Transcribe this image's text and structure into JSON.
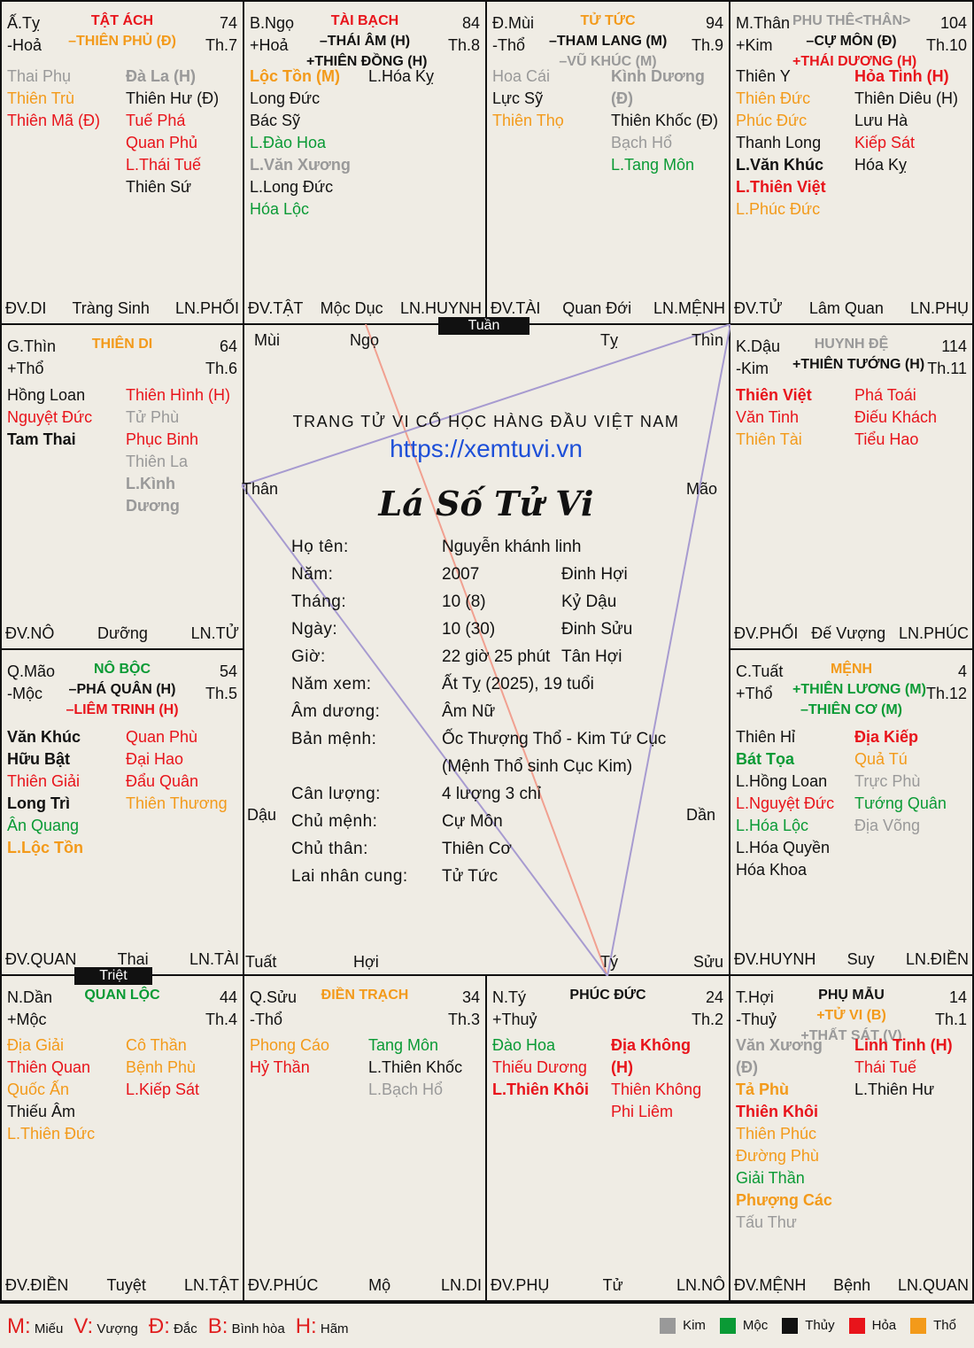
{
  "colors": {
    "kim": "#999999",
    "moc": "#0a9a35",
    "thuy": "#111111",
    "hoa": "#e8141b",
    "tho": "#f39a1a",
    "blue": "#1d4fd8",
    "red_line": "#f1a090",
    "purple_line": "#a79bd0"
  },
  "palaces": [
    {
      "branch_line1": "Ấ.Tỵ",
      "branch_line2": "-Hoả",
      "title": [
        {
          "text": "TẬT ÁCH",
          "c": "hoa"
        },
        {
          "text": "–THIÊN PHỦ (Đ)",
          "c": "tho"
        }
      ],
      "age": "74",
      "month": "Th.7",
      "left": [
        {
          "text": "Thai Phụ",
          "c": "kim"
        },
        {
          "text": "Thiên Trù",
          "c": "tho"
        },
        {
          "text": "Thiên Mã (Đ)",
          "c": "hoa"
        }
      ],
      "right": [
        {
          "text": "Đà La (H)",
          "c": "kim",
          "b": true
        },
        {
          "text": "Thiên Hư (Đ)",
          "c": "thuy"
        },
        {
          "text": "Tuế Phá",
          "c": "hoa"
        },
        {
          "text": "Quan Phủ",
          "c": "hoa"
        },
        {
          "text": "L.Thái Tuế",
          "c": "hoa"
        },
        {
          "text": "Thiên Sứ",
          "c": "thuy"
        }
      ],
      "footer": [
        "ĐV.DI",
        "Tràng Sinh",
        "LN.PHỐI"
      ]
    },
    {
      "branch_line1": "B.Ngọ",
      "branch_line2": "+Hoả",
      "title": [
        {
          "text": "TÀI BẠCH",
          "c": "hoa"
        },
        {
          "text": "–THÁI ÂM (H)",
          "c": "thuy"
        },
        {
          "text": "+THIÊN ĐỒNG (H)",
          "c": "thuy"
        }
      ],
      "age": "84",
      "month": "Th.8",
      "left": [
        {
          "text": "Lộc Tồn (M)",
          "c": "tho",
          "b": true
        },
        {
          "text": "Long Đức",
          "c": "thuy"
        },
        {
          "text": "Bác Sỹ",
          "c": "thuy"
        },
        {
          "text": "L.Đào Hoa",
          "c": "moc"
        },
        {
          "text": "L.Văn Xương",
          "c": "kim",
          "b": true
        },
        {
          "text": "L.Long Đức",
          "c": "thuy"
        },
        {
          "text": "Hóa Lộc",
          "c": "moc"
        }
      ],
      "right": [
        {
          "text": "L.Hóa Kỵ",
          "c": "thuy"
        }
      ],
      "footer": [
        "ĐV.TẬT",
        "Mộc Dục",
        "LN.HUYNH"
      ]
    },
    {
      "branch_line1": "Đ.Mùi",
      "branch_line2": "-Thổ",
      "title": [
        {
          "text": "TỬ TỨC",
          "c": "tho"
        },
        {
          "text": "–THAM LANG (M)",
          "c": "thuy"
        },
        {
          "text": "–VŨ KHÚC (M)",
          "c": "kim"
        }
      ],
      "age": "94",
      "month": "Th.9",
      "left": [
        {
          "text": "Hoa Cái",
          "c": "kim"
        },
        {
          "text": "Lực Sỹ",
          "c": "thuy"
        },
        {
          "text": "Thiên Thọ",
          "c": "tho"
        }
      ],
      "right": [
        {
          "text": "Kình Dương",
          "c": "kim",
          "b": true
        },
        {
          "text": "(Đ)",
          "c": "kim",
          "b": true
        },
        {
          "text": "Thiên Khốc (Đ)",
          "c": "thuy"
        },
        {
          "text": "Bạch Hổ",
          "c": "kim"
        },
        {
          "text": "L.Tang Môn",
          "c": "moc"
        }
      ],
      "footer": [
        "ĐV.TÀI",
        "Quan Đới",
        "LN.MỆNH"
      ]
    },
    {
      "branch_line1": "M.Thân",
      "branch_line2": "+Kim",
      "title": [
        {
          "text": "PHU THÊ<THÂN>",
          "c": "kim"
        },
        {
          "text": "–CỰ MÔN (Đ)",
          "c": "thuy"
        },
        {
          "text": "+THÁI DƯƠNG (H)",
          "c": "hoa"
        }
      ],
      "age": "104",
      "month": "Th.10",
      "left": [
        {
          "text": "Thiên Y",
          "c": "thuy"
        },
        {
          "text": "Thiên Đức",
          "c": "tho"
        },
        {
          "text": "Phúc Đức",
          "c": "tho"
        },
        {
          "text": "Thanh Long",
          "c": "thuy"
        },
        {
          "text": "L.Văn Khúc",
          "c": "thuy",
          "b": true
        },
        {
          "text": "L.Thiên Việt",
          "c": "hoa",
          "b": true
        },
        {
          "text": "L.Phúc Đức",
          "c": "tho"
        }
      ],
      "right": [
        {
          "text": "Hỏa Tinh (H)",
          "c": "hoa",
          "b": true
        },
        {
          "text": "Thiên Diêu (H)",
          "c": "thuy"
        },
        {
          "text": "Lưu Hà",
          "c": "thuy"
        },
        {
          "text": "Kiếp Sát",
          "c": "hoa"
        },
        {
          "text": "Hóa Kỵ",
          "c": "thuy"
        }
      ],
      "footer": [
        "ĐV.TỬ",
        "Lâm Quan",
        "LN.PHỤ"
      ]
    },
    {
      "branch_line1": "G.Thìn",
      "branch_line2": "+Thổ",
      "title": [
        {
          "text": "THIÊN DI",
          "c": "tho"
        }
      ],
      "age": "64",
      "month": "Th.6",
      "left": [
        {
          "text": "Hồng Loan",
          "c": "thuy"
        },
        {
          "text": "Nguyệt Đức",
          "c": "hoa"
        },
        {
          "text": "Tam Thai",
          "c": "thuy",
          "b": true
        }
      ],
      "right": [
        {
          "text": "Thiên Hình (H)",
          "c": "hoa"
        },
        {
          "text": "Tử Phù",
          "c": "kim"
        },
        {
          "text": "Phục Binh",
          "c": "hoa"
        },
        {
          "text": "Thiên La",
          "c": "kim"
        },
        {
          "text": "L.Kình",
          "c": "kim",
          "b": true
        },
        {
          "text": "Dương",
          "c": "kim",
          "b": true
        }
      ],
      "footer": [
        "ĐV.NÔ",
        "Dưỡng",
        "LN.TỬ"
      ]
    },
    {
      "branch_line1": "K.Dậu",
      "branch_line2": "-Kim",
      "title": [
        {
          "text": "HUYNH ĐỆ",
          "c": "kim"
        },
        {
          "text": "+THIÊN TƯỚNG (H)",
          "c": "thuy"
        }
      ],
      "age": "114",
      "month": "Th.11",
      "left": [
        {
          "text": "Thiên Việt",
          "c": "hoa",
          "b": true
        },
        {
          "text": "Văn Tinh",
          "c": "hoa"
        },
        {
          "text": "Thiên Tài",
          "c": "tho"
        }
      ],
      "right": [
        {
          "text": "Phá Toái",
          "c": "hoa"
        },
        {
          "text": "Điếu Khách",
          "c": "hoa"
        },
        {
          "text": "Tiểu Hao",
          "c": "hoa"
        }
      ],
      "footer": [
        "ĐV.PHỐI",
        "Đế Vượng",
        "LN.PHÚC"
      ]
    },
    {
      "branch_line1": "Q.Mão",
      "branch_line2": "-Mộc",
      "title": [
        {
          "text": "NÔ BỘC",
          "c": "moc"
        },
        {
          "text": "–PHÁ QUÂN (H)",
          "c": "thuy"
        },
        {
          "text": "–LIÊM TRINH (H)",
          "c": "hoa"
        }
      ],
      "age": "54",
      "month": "Th.5",
      "left": [
        {
          "text": "Văn Khúc",
          "c": "thuy",
          "b": true
        },
        {
          "text": "Hữu Bật",
          "c": "thuy",
          "b": true
        },
        {
          "text": "Thiên Giải",
          "c": "hoa"
        },
        {
          "text": "Long Trì",
          "c": "thuy",
          "b": true
        },
        {
          "text": "Ân Quang",
          "c": "moc"
        },
        {
          "text": "L.Lộc Tồn",
          "c": "tho",
          "b": true
        }
      ],
      "right": [
        {
          "text": "Quan Phù",
          "c": "hoa"
        },
        {
          "text": "Đại Hao",
          "c": "hoa"
        },
        {
          "text": "Đẩu Quân",
          "c": "hoa"
        },
        {
          "text": "Thiên Thương",
          "c": "tho"
        }
      ],
      "footer": [
        "ĐV.QUAN",
        "Thai",
        "LN.TÀI"
      ]
    },
    {
      "branch_line1": "C.Tuất",
      "branch_line2": "+Thổ",
      "title": [
        {
          "text": "MỆNH",
          "c": "tho"
        },
        {
          "text": "+THIÊN LƯƠNG (M)",
          "c": "moc"
        },
        {
          "text": "–THIÊN CƠ (M)",
          "c": "moc"
        }
      ],
      "age": "4",
      "month": "Th.12",
      "left": [
        {
          "text": "Thiên Hỉ",
          "c": "thuy"
        },
        {
          "text": "Bát Tọa",
          "c": "moc",
          "b": true
        },
        {
          "text": "L.Hồng Loan",
          "c": "thuy"
        },
        {
          "text": "L.Nguyệt Đức",
          "c": "hoa"
        },
        {
          "text": "L.Hóa Lộc",
          "c": "moc"
        },
        {
          "text": "L.Hóa Quyền",
          "c": "thuy"
        },
        {
          "text": "Hóa Khoa",
          "c": "thuy"
        }
      ],
      "right": [
        {
          "text": "Địa Kiếp",
          "c": "hoa",
          "b": true
        },
        {
          "text": "Quả Tú",
          "c": "tho"
        },
        {
          "text": "Trực Phù",
          "c": "kim"
        },
        {
          "text": "Tướng Quân",
          "c": "moc"
        },
        {
          "text": "Địa Võng",
          "c": "kim"
        }
      ],
      "footer": [
        "ĐV.HUYNH",
        "Suy",
        "LN.ĐIỀN"
      ]
    },
    {
      "branch_line1": "N.Dần",
      "branch_line2": "+Mộc",
      "title": [
        {
          "text": "QUAN LỘC",
          "c": "moc"
        }
      ],
      "age": "44",
      "month": "Th.4",
      "left": [
        {
          "text": "Địa Giải",
          "c": "tho"
        },
        {
          "text": "Thiên Quan",
          "c": "hoa"
        },
        {
          "text": "Quốc Ấn",
          "c": "tho"
        },
        {
          "text": "Thiếu Âm",
          "c": "thuy"
        },
        {
          "text": "L.Thiên Đức",
          "c": "tho"
        }
      ],
      "right": [
        {
          "text": "Cô Thần",
          "c": "tho"
        },
        {
          "text": "Bệnh Phù",
          "c": "tho"
        },
        {
          "text": "L.Kiếp Sát",
          "c": "hoa"
        }
      ],
      "footer": [
        "ĐV.ĐIỀN",
        "Tuyệt",
        "LN.TẬT"
      ]
    },
    {
      "branch_line1": "Q.Sửu",
      "branch_line2": "-Thổ",
      "title": [
        {
          "text": "ĐIỀN TRẠCH",
          "c": "tho"
        }
      ],
      "age": "34",
      "month": "Th.3",
      "left": [
        {
          "text": "Phong Cáo",
          "c": "tho"
        },
        {
          "text": "Hỷ Thần",
          "c": "hoa"
        }
      ],
      "right": [
        {
          "text": "Tang Môn",
          "c": "moc"
        },
        {
          "text": "L.Thiên Khốc",
          "c": "thuy"
        },
        {
          "text": "L.Bạch Hổ",
          "c": "kim"
        }
      ],
      "footer": [
        "ĐV.PHÚC",
        "Mộ",
        "LN.DI"
      ]
    },
    {
      "branch_line1": "N.Tý",
      "branch_line2": "+Thuỷ",
      "title": [
        {
          "text": "PHÚC ĐỨC",
          "c": "thuy"
        }
      ],
      "age": "24",
      "month": "Th.2",
      "left": [
        {
          "text": "Đào Hoa",
          "c": "moc"
        },
        {
          "text": "Thiếu Dương",
          "c": "hoa"
        },
        {
          "text": "L.Thiên Khôi",
          "c": "hoa",
          "b": true
        }
      ],
      "right": [
        {
          "text": "Địa Không",
          "c": "hoa",
          "b": true
        },
        {
          "text": "(H)",
          "c": "hoa",
          "b": true
        },
        {
          "text": "Thiên Không",
          "c": "hoa"
        },
        {
          "text": "Phi Liêm",
          "c": "hoa"
        }
      ],
      "footer": [
        "ĐV.PHỤ",
        "Tử",
        "LN.NÔ"
      ]
    },
    {
      "branch_line1": "T.Hợi",
      "branch_line2": "-Thuỷ",
      "title": [
        {
          "text": "PHỤ MẪU",
          "c": "thuy"
        },
        {
          "text": "+TỬ VI (B)",
          "c": "tho"
        },
        {
          "text": "+THẤT SÁT (V)",
          "c": "kim"
        }
      ],
      "age": "14",
      "month": "Th.1",
      "left": [
        {
          "text": "Văn Xương",
          "c": "kim",
          "b": true
        },
        {
          "text": "(Đ)",
          "c": "kim",
          "b": true
        },
        {
          "text": "Tả Phù",
          "c": "tho",
          "b": true
        },
        {
          "text": "Thiên Khôi",
          "c": "hoa",
          "b": true
        },
        {
          "text": "Thiên Phúc",
          "c": "tho"
        },
        {
          "text": "Đường Phù",
          "c": "tho"
        },
        {
          "text": "Giải Thần",
          "c": "moc"
        },
        {
          "text": "Phượng Các",
          "c": "tho",
          "b": true
        },
        {
          "text": "Tấu Thư",
          "c": "kim"
        }
      ],
      "right": [
        {
          "text": "Linh Tinh (H)",
          "c": "hoa",
          "b": true
        },
        {
          "text": "Thái Tuế",
          "c": "hoa"
        },
        {
          "text": "L.Thiên Hư",
          "c": "thuy"
        }
      ],
      "footer": [
        "ĐV.MỆNH",
        "Bệnh",
        "LN.QUAN"
      ]
    }
  ],
  "tuan_label": "Tuần",
  "triet_label": "Triệt",
  "center": {
    "directions": [
      "Mùi",
      "Ngọ",
      "Tỵ",
      "Thìn",
      "Thân",
      "Mão",
      "Dậu",
      "Dần",
      "Tuất",
      "Hợi",
      "Tý",
      "Sửu"
    ],
    "site_name": "TRANG TỬ VI CỔ HỌC HÀNG ĐẦU VIỆT NAM",
    "site_url": "https://xemtuvi.vn",
    "title": "Lá Số Tử Vi",
    "rows": [
      {
        "label": "Họ tên:",
        "v1": "Nguyễn khánh linh",
        "v2": ""
      },
      {
        "label": "Năm:",
        "v1": "2007",
        "v2": "Đinh Hợi"
      },
      {
        "label": "Tháng:",
        "v1": "10 (8)",
        "v2": "Kỷ Dậu"
      },
      {
        "label": "Ngày:",
        "v1": "10 (30)",
        "v2": "Đinh Sửu"
      },
      {
        "label": "Giờ:",
        "v1": "22 giờ 25 phút",
        "v2": "Tân Hợi"
      },
      {
        "label": "Năm xem:",
        "v1": "Ất Tỵ (2025), 19 tuổi",
        "v2": ""
      },
      {
        "label": "Âm dương:",
        "v1": "Âm Nữ",
        "v2": ""
      },
      {
        "label": "Bản mệnh:",
        "v1": "Ốc Thượng Thổ - Kim Tứ Cục",
        "v2": ""
      },
      {
        "label": "",
        "v1": "(Mệnh Thổ sinh Cục Kim)",
        "v2": ""
      },
      {
        "label": "Cân lượng:",
        "v1": "4 lượng 3 chỉ",
        "v2": ""
      },
      {
        "label": "Chủ mệnh:",
        "v1": "Cự Môn",
        "v2": ""
      },
      {
        "label": "Chủ thân:",
        "v1": "Thiên Cơ",
        "v2": ""
      },
      {
        "label": "Lai nhân cung:",
        "v1": "Tử Tức",
        "v2": ""
      }
    ]
  },
  "legend": {
    "strength": [
      {
        "k": "M:",
        "v": "Miếu"
      },
      {
        "k": "V:",
        "v": "Vượng"
      },
      {
        "k": "Đ:",
        "v": "Đắc"
      },
      {
        "k": "B:",
        "v": "Bình hòa"
      },
      {
        "k": "H:",
        "v": "Hãm"
      }
    ],
    "elements": [
      {
        "name": "Kim",
        "color": "#999999"
      },
      {
        "name": "Mộc",
        "color": "#0a9a35"
      },
      {
        "name": "Thủy",
        "color": "#111111"
      },
      {
        "name": "Hỏa",
        "color": "#e8141b"
      },
      {
        "name": "Thổ",
        "color": "#f39a1a"
      }
    ]
  }
}
